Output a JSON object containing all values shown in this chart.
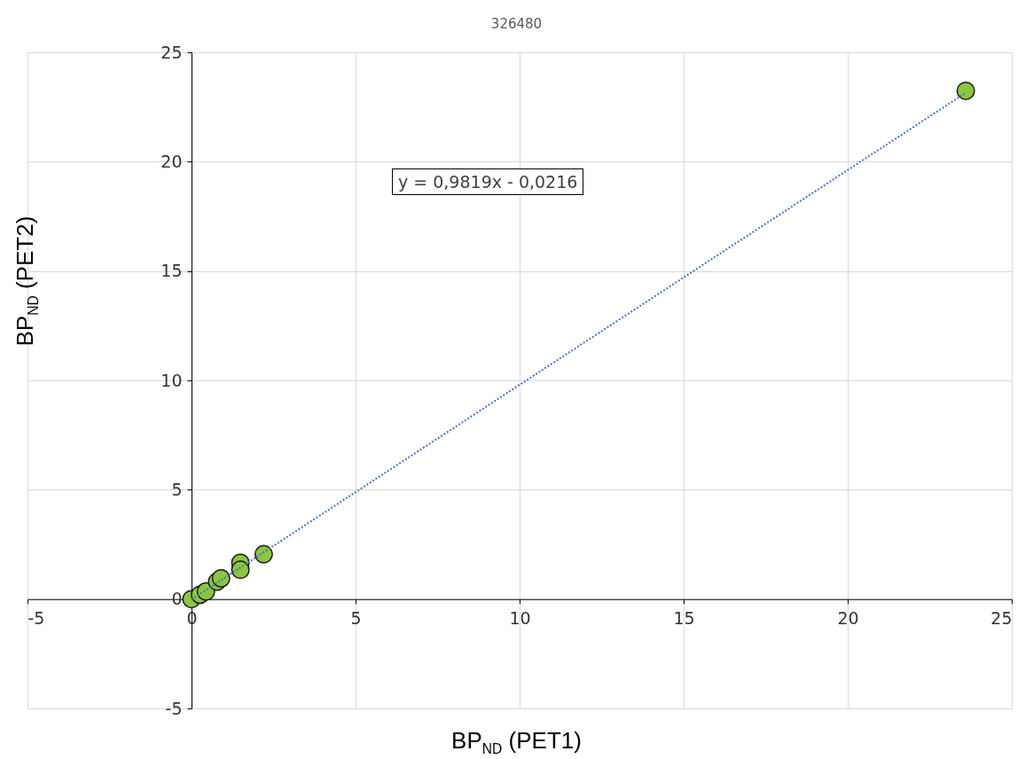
{
  "chart_data": {
    "type": "scatter",
    "title": "326480",
    "xlabel": "BP$_{ND}$ (PET1)",
    "ylabel": "BP$_{ND}$ (PET2)",
    "x": [
      0,
      0.26,
      0.44,
      0.78,
      0.9,
      1.49,
      1.49,
      2.2,
      23.6
    ],
    "series": [
      {
        "color": "#8cc63f",
        "values": [
          0,
          0.2,
          0.35,
          0.8,
          0.95,
          1.66,
          1.34,
          2.05,
          23.24
        ]
      },
      {
        "type": "line",
        "color": "#4472c4",
        "line_style": "dotted",
        "marker": "none",
        "x": [
          0,
          23.6
        ],
        "values": [
          -0.02,
          23.15
        ]
      }
    ],
    "annotations": [
      "y = 0,9819x - 0,0216"
    ],
    "xlim": [
      -5,
      25
    ],
    "ylim": [
      -5,
      25
    ],
    "xticks": [
      -5,
      0,
      5,
      10,
      15,
      20,
      25
    ],
    "yticks": [
      -5,
      0,
      5,
      10,
      15,
      20,
      25
    ],
    "grid": true,
    "marker": "circle"
  }
}
